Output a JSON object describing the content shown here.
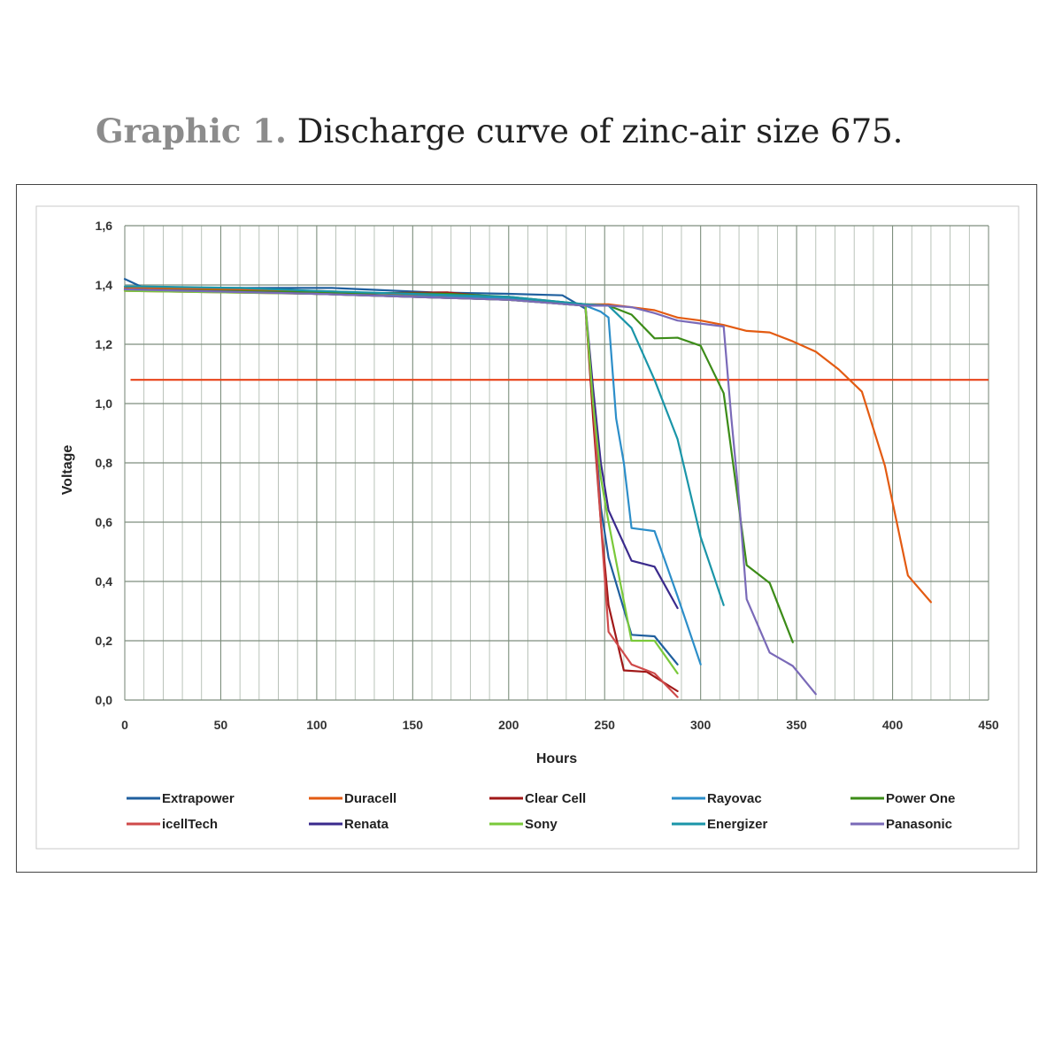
{
  "caption": {
    "label": "Graphic 1.",
    "text": "Discharge curve of zinc-air size 675."
  },
  "chart_data": {
    "type": "line",
    "xlabel": "Hours",
    "ylabel": "Voltage",
    "xlim": [
      0,
      450
    ],
    "ylim": [
      0,
      1.6
    ],
    "xticks": [
      "0",
      "50",
      "100",
      "150",
      "200",
      "250",
      "300",
      "350",
      "400",
      "450"
    ],
    "yticks": [
      "0,0",
      "0,2",
      "0,4",
      "0,6",
      "0,8",
      "1,0",
      "1,2",
      "1,4",
      "1,6"
    ],
    "grid": true,
    "legend_position": "bottom",
    "reference_line": {
      "y": 1.08,
      "x": [
        3,
        450
      ],
      "color": "#e8431a"
    },
    "series": [
      {
        "name": "Extrapower",
        "color": "#1f5f9e",
        "points": [
          [
            0,
            1.42
          ],
          [
            10,
            1.39
          ],
          [
            60,
            1.39
          ],
          [
            108,
            1.39
          ],
          [
            160,
            1.375
          ],
          [
            200,
            1.37
          ],
          [
            228,
            1.365
          ],
          [
            240,
            1.32
          ],
          [
            244,
            1.0
          ],
          [
            248,
            0.65
          ],
          [
            252,
            0.48
          ],
          [
            264,
            0.22
          ],
          [
            276,
            0.215
          ],
          [
            288,
            0.12
          ]
        ]
      },
      {
        "name": "Duracell",
        "color": "#e35b12",
        "points": [
          [
            0,
            1.39
          ],
          [
            50,
            1.385
          ],
          [
            100,
            1.38
          ],
          [
            200,
            1.355
          ],
          [
            240,
            1.335
          ],
          [
            252,
            1.335
          ],
          [
            276,
            1.315
          ],
          [
            288,
            1.29
          ],
          [
            300,
            1.28
          ],
          [
            312,
            1.265
          ],
          [
            324,
            1.245
          ],
          [
            336,
            1.24
          ],
          [
            348,
            1.21
          ],
          [
            360,
            1.175
          ],
          [
            372,
            1.115
          ],
          [
            384,
            1.04
          ],
          [
            396,
            0.79
          ],
          [
            408,
            0.42
          ],
          [
            420,
            0.33
          ]
        ]
      },
      {
        "name": "Clear Cell",
        "color": "#a01818",
        "points": [
          [
            0,
            1.385
          ],
          [
            100,
            1.37
          ],
          [
            168,
            1.375
          ],
          [
            200,
            1.355
          ],
          [
            240,
            1.33
          ],
          [
            244,
            0.95
          ],
          [
            248,
            0.6
          ],
          [
            252,
            0.32
          ],
          [
            260,
            0.1
          ],
          [
            272,
            0.095
          ],
          [
            288,
            0.03
          ]
        ]
      },
      {
        "name": "Rayovac",
        "color": "#2c8ec9",
        "points": [
          [
            0,
            1.385
          ],
          [
            100,
            1.37
          ],
          [
            200,
            1.355
          ],
          [
            240,
            1.33
          ],
          [
            248,
            1.31
          ],
          [
            252,
            1.29
          ],
          [
            256,
            0.95
          ],
          [
            260,
            0.8
          ],
          [
            264,
            0.58
          ],
          [
            276,
            0.57
          ],
          [
            288,
            0.35
          ],
          [
            300,
            0.12
          ]
        ]
      },
      {
        "name": "Power One",
        "color": "#3c8c18",
        "points": [
          [
            0,
            1.385
          ],
          [
            100,
            1.375
          ],
          [
            168,
            1.37
          ],
          [
            200,
            1.36
          ],
          [
            240,
            1.335
          ],
          [
            252,
            1.33
          ],
          [
            264,
            1.3
          ],
          [
            276,
            1.22
          ],
          [
            288,
            1.222
          ],
          [
            300,
            1.195
          ],
          [
            312,
            1.035
          ],
          [
            324,
            0.455
          ],
          [
            336,
            0.395
          ],
          [
            348,
            0.195
          ]
        ]
      },
      {
        "name": "icellTech",
        "color": "#cf4a4a",
        "points": [
          [
            0,
            1.38
          ],
          [
            100,
            1.37
          ],
          [
            200,
            1.35
          ],
          [
            240,
            1.33
          ],
          [
            244,
            1.0
          ],
          [
            248,
            0.6
          ],
          [
            252,
            0.23
          ],
          [
            264,
            0.12
          ],
          [
            276,
            0.09
          ],
          [
            288,
            0.01
          ]
        ]
      },
      {
        "name": "Renata",
        "color": "#3a2a8c",
        "points": [
          [
            0,
            1.385
          ],
          [
            100,
            1.37
          ],
          [
            200,
            1.35
          ],
          [
            240,
            1.33
          ],
          [
            244,
            1.05
          ],
          [
            248,
            0.8
          ],
          [
            252,
            0.64
          ],
          [
            264,
            0.47
          ],
          [
            276,
            0.45
          ],
          [
            288,
            0.31
          ]
        ]
      },
      {
        "name": "Sony",
        "color": "#7ac93a",
        "points": [
          [
            0,
            1.38
          ],
          [
            100,
            1.37
          ],
          [
            200,
            1.35
          ],
          [
            240,
            1.33
          ],
          [
            244,
            1.0
          ],
          [
            248,
            0.75
          ],
          [
            252,
            0.6
          ],
          [
            264,
            0.2
          ],
          [
            276,
            0.2
          ],
          [
            288,
            0.09
          ]
        ]
      },
      {
        "name": "Energizer",
        "color": "#1a95a8",
        "points": [
          [
            0,
            1.395
          ],
          [
            10,
            1.395
          ],
          [
            60,
            1.39
          ],
          [
            100,
            1.38
          ],
          [
            200,
            1.36
          ],
          [
            240,
            1.335
          ],
          [
            252,
            1.33
          ],
          [
            264,
            1.255
          ],
          [
            276,
            1.08
          ],
          [
            288,
            0.88
          ],
          [
            300,
            0.55
          ],
          [
            312,
            0.32
          ]
        ]
      },
      {
        "name": "Panasonic",
        "color": "#7a6ab8",
        "points": [
          [
            0,
            1.385
          ],
          [
            100,
            1.37
          ],
          [
            200,
            1.35
          ],
          [
            240,
            1.33
          ],
          [
            252,
            1.33
          ],
          [
            264,
            1.325
          ],
          [
            276,
            1.305
          ],
          [
            288,
            1.28
          ],
          [
            300,
            1.27
          ],
          [
            312,
            1.26
          ],
          [
            316,
            0.95
          ],
          [
            320,
            0.68
          ],
          [
            324,
            0.34
          ],
          [
            336,
            0.16
          ],
          [
            348,
            0.115
          ],
          [
            360,
            0.02
          ]
        ]
      }
    ]
  }
}
